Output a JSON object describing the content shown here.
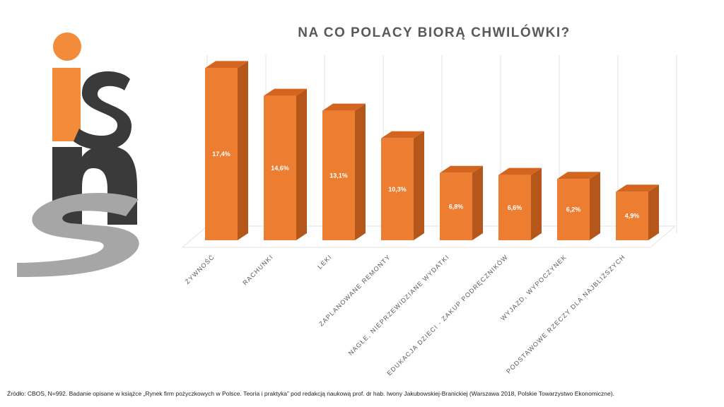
{
  "logo": {
    "text": "isns"
  },
  "footer": {
    "source": "Źródło: CBOS, N=992.  Badanie opisane w książce „Rynek firm pożyczkowych w Polsce. Teoria i praktyka” pod redakcją naukową prof. dr hab. Iwony Jakubowskiej-Branickiej (Warszawa 2018, Polskie Towarzystwo Ekonomiczne)."
  },
  "chart_data": {
    "type": "bar",
    "title": "NA CO POLACY BIORĄ CHWILÓWKI?",
    "categories": [
      "ŻYWNOŚĆ",
      "RACHUNKI",
      "LEKI",
      "ZAPLANOWANE REMONTY",
      "NAGŁE, NIEPRZEWIDZIANE WYDATKI",
      "EDUKACJA DZIECI - ZAKUP PODRĘCZNIKÓW",
      "WYJAZD, WYPOCZYNEK",
      "PODSTAWOWE RZECZY DLA NAJBLIŻSZYCH"
    ],
    "values": [
      17.4,
      14.6,
      13.1,
      10.3,
      6.8,
      6.6,
      6.2,
      4.9
    ],
    "value_labels": [
      "17,4%",
      "14,6%",
      "13,1%",
      "10,3%",
      "6,8%",
      "6,6%",
      "6,2%",
      "4,9%"
    ],
    "ylim": [
      0,
      18
    ],
    "colors": {
      "front": "#ED7D31",
      "side": "#B5561B",
      "top": "#D4651F",
      "grid": "#E3E3E3",
      "axis_text": "#595959"
    }
  }
}
